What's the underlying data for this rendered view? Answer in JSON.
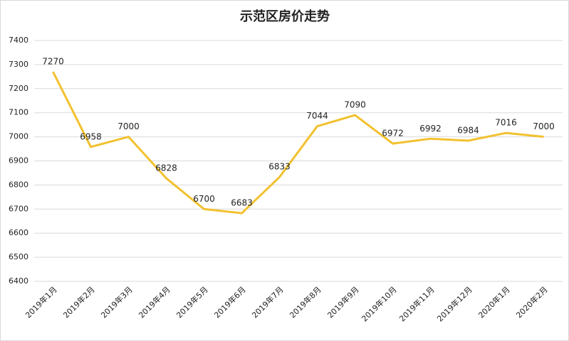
{
  "chart_data": {
    "type": "line",
    "title": "示范区房价走势",
    "categories": [
      "2019年1月",
      "2019年2月",
      "2019年3月",
      "2019年4月",
      "2019年5月",
      "2019年6月",
      "2019年7月",
      "2019年8月",
      "2019年9月",
      "2019年10月",
      "2019年11月",
      "2019年12月",
      "2020年1月",
      "2020年2月"
    ],
    "series": [
      {
        "name": "示范区房价",
        "color": "#f2c12e",
        "values": [
          7270,
          6958,
          7000,
          6828,
          6700,
          6683,
          6833,
          7044,
          7090,
          6972,
          6992,
          6984,
          7016,
          7000
        ]
      }
    ],
    "ylim": [
      6400,
      7400
    ],
    "yticks": [
      6400,
      6500,
      6600,
      6700,
      6800,
      6900,
      7000,
      7100,
      7200,
      7300,
      7400
    ],
    "grid": true
  }
}
